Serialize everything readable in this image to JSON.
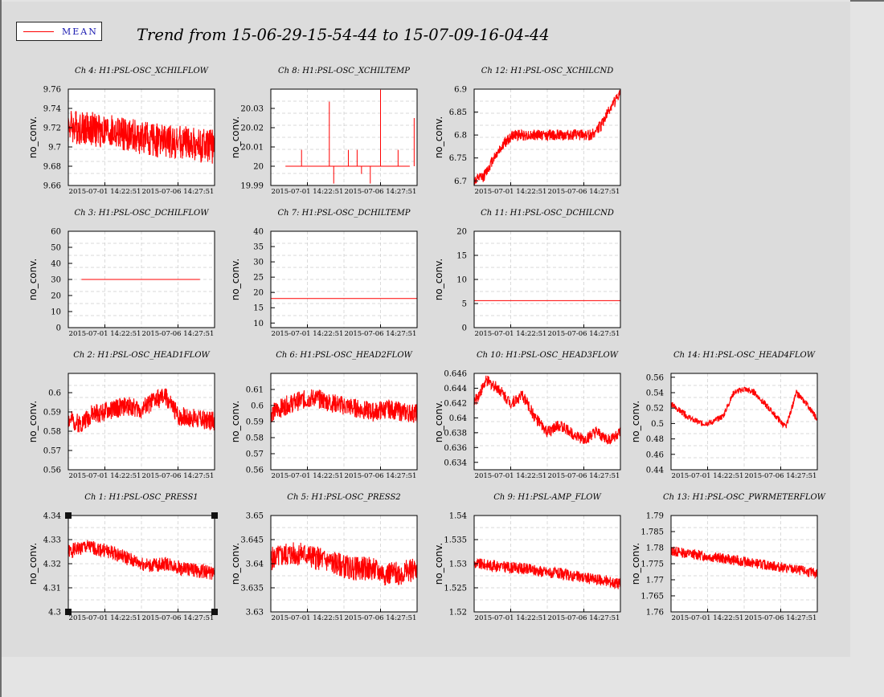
{
  "legend": {
    "label": "MEAN",
    "color": "#ff0000"
  },
  "title": "Trend from 15-06-29-15-54-44 to 15-07-09-16-04-44",
  "colors": {
    "trace": "#ff0000",
    "plot_bg": "#ffffff",
    "page_bg": "#dcdcdc",
    "grid": "#cccccc"
  },
  "chart_data": [
    {
      "type": "line",
      "title": "Ch 4: H1:PSL-OSC_XCHILFLOW",
      "ylabel": "no_conv.",
      "ylim": [
        9.66,
        9.76
      ],
      "yticks": [
        "9.66",
        "9.68",
        "9.7",
        "9.72",
        "9.74",
        "9.76"
      ],
      "xticks": [
        "2015-07-01 14:22:51",
        "2015-07-06 14:27:51"
      ],
      "series": [
        {
          "name": "MEAN",
          "kind": "noise",
          "values": [
            9.722,
            9.72,
            9.717,
            9.714,
            9.711,
            9.708,
            9.706,
            9.704,
            9.702,
            9.7
          ],
          "noise": 0.018,
          "seed": 4
        }
      ]
    },
    {
      "type": "line",
      "title": "Ch 8: H1:PSL-OSC_XCHILTEMP",
      "ylabel": "no_conv.",
      "ylim": [
        19.99,
        20.04
      ],
      "yticks": [
        "19.99",
        "20",
        "20.01",
        "20.02",
        "20.03"
      ],
      "xticks": [
        "2015-07-01 14:22:51",
        "2015-07-06 14:27:51"
      ],
      "series": [
        {
          "name": "MEAN",
          "kind": "spikes",
          "base": 20.0,
          "xrange": [
            0.1,
            0.95
          ],
          "spikes": [
            [
              0.21,
              20.0085
            ],
            [
              0.4,
              20.0335
            ],
            [
              0.43,
              19.991
            ],
            [
              0.53,
              20.0085
            ],
            [
              0.59,
              20.0085
            ],
            [
              0.62,
              19.996
            ],
            [
              0.68,
              19.991
            ],
            [
              0.75,
              20.0397
            ],
            [
              0.87,
              20.0085
            ],
            [
              0.98,
              20.025
            ]
          ]
        }
      ]
    },
    {
      "type": "line",
      "title": "Ch 12: H1:PSL-OSC_XCHILCND",
      "ylabel": "no_conv.",
      "ylim": [
        6.69,
        6.9
      ],
      "yticks": [
        "6.7",
        "6.75",
        "6.8",
        "6.85",
        "6.9"
      ],
      "xticks": [
        "2015-07-01 14:22:51",
        "2015-07-06 14:27:51"
      ],
      "series": [
        {
          "name": "MEAN",
          "kind": "noise",
          "values": [
            6.7,
            6.71,
            6.75,
            6.78,
            6.8,
            6.8,
            6.8,
            6.8,
            6.8,
            6.8,
            6.8,
            6.8,
            6.8,
            6.82,
            6.86,
            6.89
          ],
          "noise": 0.012,
          "seed": 12
        }
      ]
    },
    {
      "type": "line",
      "title": "Ch 3: H1:PSL-OSC_DCHILFLOW",
      "ylabel": "no_conv.",
      "ylim": [
        0,
        60
      ],
      "yticks": [
        "0",
        "10",
        "20",
        "30",
        "40",
        "50",
        "60"
      ],
      "xticks": [
        "2015-07-01 14:22:51",
        "2015-07-06 14:27:51"
      ],
      "series": [
        {
          "name": "MEAN",
          "kind": "flat",
          "value": 30,
          "xrange": [
            0.09,
            0.9
          ]
        }
      ]
    },
    {
      "type": "line",
      "title": "Ch 7: H1:PSL-OSC_DCHILTEMP",
      "ylabel": "no_conv.",
      "ylim": [
        8.5,
        40
      ],
      "yticks": [
        "10",
        "15",
        "20",
        "25",
        "30",
        "35",
        "40"
      ],
      "xticks": [
        "2015-07-01 14:22:51",
        "2015-07-06 14:27:51"
      ],
      "series": [
        {
          "name": "MEAN",
          "kind": "flat",
          "value": 18,
          "xrange": [
            0,
            1
          ]
        }
      ]
    },
    {
      "type": "line",
      "title": "Ch 11: H1:PSL-OSC_DCHILCND",
      "ylabel": "no_conv.",
      "ylim": [
        0,
        20
      ],
      "yticks": [
        "0",
        "5",
        "10",
        "15",
        "20"
      ],
      "xticks": [
        "2015-07-01 14:22:51",
        "2015-07-06 14:27:51"
      ],
      "series": [
        {
          "name": "MEAN",
          "kind": "flat",
          "value": 5.6,
          "xrange": [
            0,
            1
          ]
        }
      ]
    },
    {
      "type": "line",
      "title": "Ch 2: H1:PSL-OSC_HEAD1FLOW",
      "ylabel": "no_conv.",
      "ylim": [
        0.56,
        0.61
      ],
      "yticks": [
        "0.56",
        "0.57",
        "0.58",
        "0.59",
        "0.6"
      ],
      "xticks": [
        "2015-07-01 14:22:51",
        "2015-07-06 14:27:51"
      ],
      "series": [
        {
          "name": "MEAN",
          "kind": "noise",
          "values": [
            0.586,
            0.584,
            0.589,
            0.59,
            0.592,
            0.593,
            0.591,
            0.596,
            0.598,
            0.588,
            0.587,
            0.586,
            0.585
          ],
          "noise": 0.005,
          "seed": 2
        }
      ]
    },
    {
      "type": "line",
      "title": "Ch 6: H1:PSL-OSC_HEAD2FLOW",
      "ylabel": "no_conv.",
      "ylim": [
        0.56,
        0.62
      ],
      "yticks": [
        "0.56",
        "0.57",
        "0.58",
        "0.59",
        "0.6",
        "0.61"
      ],
      "xticks": [
        "2015-07-01 14:22:51",
        "2015-07-06 14:27:51"
      ],
      "series": [
        {
          "name": "MEAN",
          "kind": "noise",
          "values": [
            0.595,
            0.6,
            0.603,
            0.605,
            0.602,
            0.6,
            0.598,
            0.596,
            0.598,
            0.596,
            0.595
          ],
          "noise": 0.006,
          "seed": 6
        }
      ]
    },
    {
      "type": "line",
      "title": "Ch 10: H1:PSL-OSC_HEAD3FLOW",
      "ylabel": "no_conv.",
      "ylim": [
        0.633,
        0.646
      ],
      "yticks": [
        "0.634",
        "0.636",
        "0.638",
        "0.64",
        "0.642",
        "0.644",
        "0.646"
      ],
      "xticks": [
        "2015-07-01 14:22:51",
        "2015-07-06 14:27:51"
      ],
      "series": [
        {
          "name": "MEAN",
          "kind": "noise",
          "values": [
            0.642,
            0.645,
            0.644,
            0.642,
            0.643,
            0.64,
            0.638,
            0.639,
            0.638,
            0.637,
            0.638,
            0.637,
            0.638
          ],
          "noise": 0.0008,
          "seed": 10
        }
      ]
    },
    {
      "type": "line",
      "title": "Ch 14: H1:PSL-OSC_HEAD4FLOW",
      "ylabel": "no_conv.",
      "ylim": [
        0.44,
        0.565
      ],
      "yticks": [
        "0.44",
        "0.46",
        "0.48",
        "0.5",
        "0.52",
        "0.54",
        "0.56"
      ],
      "xticks": [
        "2015-07-01 14:22:51",
        "2015-07-06 14:27:51"
      ],
      "series": [
        {
          "name": "MEAN",
          "kind": "noise",
          "values": [
            0.525,
            0.515,
            0.505,
            0.5,
            0.502,
            0.51,
            0.54,
            0.545,
            0.54,
            0.525,
            0.51,
            0.495,
            0.54,
            0.525,
            0.505
          ],
          "noise": 0.004,
          "seed": 14
        }
      ]
    },
    {
      "type": "line",
      "title": "Ch 1: H1:PSL-OSC_PRESS1",
      "ylabel": "no_conv.",
      "ylim": [
        4.3,
        4.34
      ],
      "yticks": [
        "4.3",
        "4.31",
        "4.32",
        "4.33",
        "4.34"
      ],
      "xticks": [
        "2015-07-01 14:22:51",
        "2015-07-06 14:27:51"
      ],
      "series": [
        {
          "name": "MEAN",
          "kind": "noise",
          "values": [
            4.325,
            4.327,
            4.326,
            4.324,
            4.321,
            4.319,
            4.32,
            4.318,
            4.317,
            4.316
          ],
          "noise": 0.003,
          "seed": 1
        }
      ]
    },
    {
      "type": "line",
      "title": "Ch 5: H1:PSL-OSC_PRESS2",
      "ylabel": "no_conv.",
      "ylim": [
        3.63,
        3.65
      ],
      "yticks": [
        "3.63",
        "3.635",
        "3.64",
        "3.645",
        "3.65"
      ],
      "xticks": [
        "2015-07-01 14:22:51",
        "2015-07-06 14:27:51"
      ],
      "series": [
        {
          "name": "MEAN",
          "kind": "noise",
          "values": [
            3.641,
            3.642,
            3.642,
            3.641,
            3.64,
            3.639,
            3.639,
            3.638,
            3.638,
            3.639
          ],
          "noise": 0.0025,
          "seed": 5
        }
      ]
    },
    {
      "type": "line",
      "title": "Ch 9: H1:PSL-AMP_FLOW",
      "ylabel": "no_conv.",
      "ylim": [
        1.52,
        1.54
      ],
      "yticks": [
        "1.52",
        "1.525",
        "1.53",
        "1.535",
        "1.54"
      ],
      "xticks": [
        "2015-07-01 14:22:51",
        "2015-07-06 14:27:51"
      ],
      "series": [
        {
          "name": "MEAN",
          "kind": "noise",
          "values": [
            1.53,
            1.5297,
            1.5293,
            1.529,
            1.5285,
            1.528,
            1.5275,
            1.527,
            1.5265,
            1.5258
          ],
          "noise": 0.0012,
          "seed": 9
        }
      ]
    },
    {
      "type": "line",
      "title": "Ch 13: H1:PSL-OSC_PWRMETERFLOW",
      "ylabel": "no_conv.",
      "ylim": [
        1.76,
        1.79
      ],
      "yticks": [
        "1.76",
        "1.765",
        "1.77",
        "1.775",
        "1.78",
        "1.785",
        "1.79"
      ],
      "xticks": [
        "2015-07-01 14:22:51",
        "2015-07-06 14:27:51"
      ],
      "series": [
        {
          "name": "MEAN",
          "kind": "noise",
          "values": [
            1.779,
            1.7782,
            1.7775,
            1.7768,
            1.776,
            1.7752,
            1.7745,
            1.7737,
            1.7728,
            1.772
          ],
          "noise": 0.0016,
          "seed": 13
        }
      ]
    }
  ]
}
